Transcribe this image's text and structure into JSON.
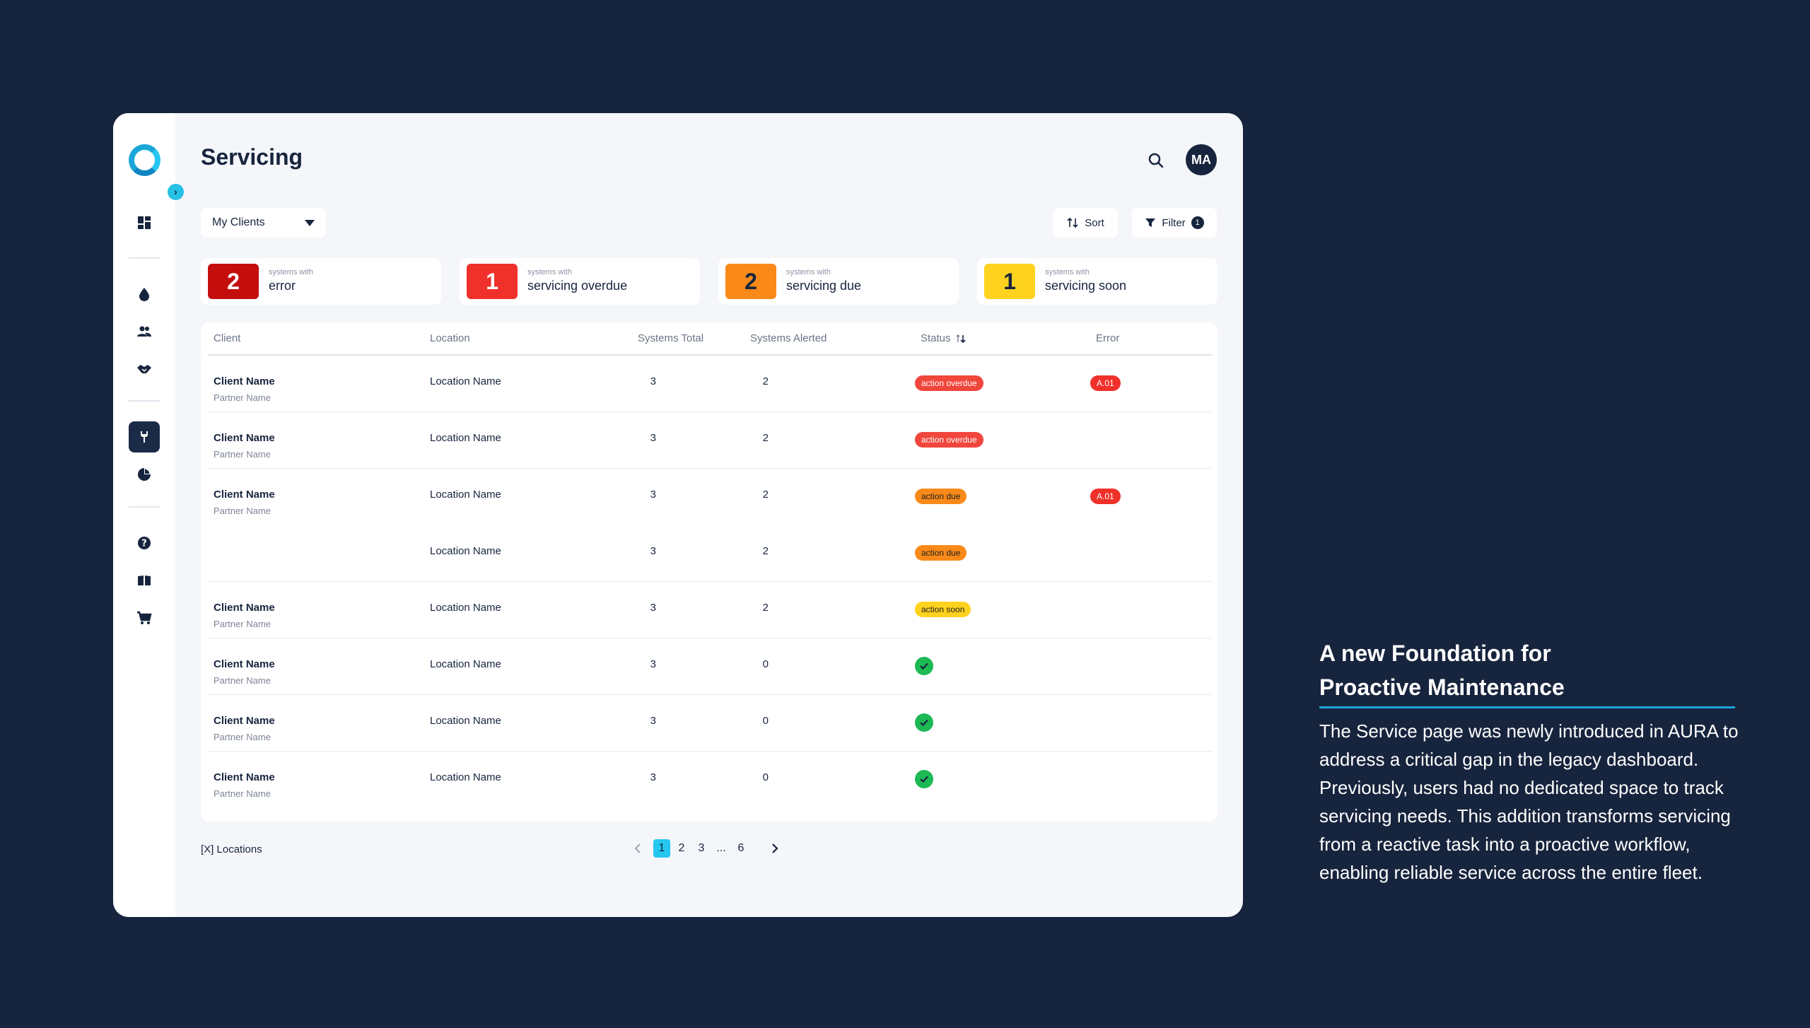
{
  "app": {
    "page_title": "Servicing",
    "avatar_initials": "MA",
    "client_filter": "My Clients",
    "sort_label": "Sort",
    "filter_label": "Filter",
    "filter_count": "1"
  },
  "sidebar": {
    "icons": [
      "dashboard-icon",
      "water-drop-icon",
      "users-icon",
      "handshake-icon",
      "wrench-icon",
      "pie-chart-icon",
      "help-icon",
      "book-icon",
      "cart-icon"
    ],
    "active": "wrench-icon"
  },
  "stats": [
    {
      "value": "2",
      "prefix": "systems with",
      "label": "error",
      "color": "#c40e0e",
      "text_color": "#ffffff"
    },
    {
      "value": "1",
      "prefix": "systems with",
      "label": "servicing overdue",
      "color": "#f0302a",
      "text_color": "#ffffff"
    },
    {
      "value": "2",
      "prefix": "systems with",
      "label": "servicing due",
      "color": "#f98a1a",
      "text_color": "#17243d"
    },
    {
      "value": "1",
      "prefix": "systems with",
      "label": "servicing soon",
      "color": "#ffd21f",
      "text_color": "#17243d"
    }
  ],
  "table": {
    "headers": {
      "client": "Client",
      "location": "Location",
      "systems_total": "Systems Total",
      "systems_alerted": "Systems Alerted",
      "status": "Status",
      "error": "Error"
    },
    "rows": [
      {
        "client": "Client Name",
        "partner": "Partner Name",
        "location": "Location Name",
        "total": "3",
        "alerted": "2",
        "status": "action overdue",
        "status_type": "red",
        "error": "A.01"
      },
      {
        "client": "Client Name",
        "partner": "Partner Name",
        "location": "Location Name",
        "total": "3",
        "alerted": "2",
        "status": "action overdue",
        "status_type": "red",
        "error": ""
      },
      {
        "client": "Client Name",
        "partner": "Partner Name",
        "location": "Location Name",
        "total": "3",
        "alerted": "2",
        "status": "action due",
        "status_type": "orange",
        "error": "A.01"
      },
      {
        "client": "",
        "partner": "",
        "location": "Location Name",
        "total": "3",
        "alerted": "2",
        "status": "action due",
        "status_type": "orange",
        "error": ""
      },
      {
        "client": "Client Name",
        "partner": "Partner Name",
        "location": "Location Name",
        "total": "3",
        "alerted": "2",
        "status": "action soon",
        "status_type": "yellow",
        "error": ""
      },
      {
        "client": "Client Name",
        "partner": "Partner Name",
        "location": "Location Name",
        "total": "3",
        "alerted": "0",
        "status": "",
        "status_type": "ok",
        "error": ""
      },
      {
        "client": "Client Name",
        "partner": "Partner Name",
        "location": "Location Name",
        "total": "3",
        "alerted": "0",
        "status": "",
        "status_type": "ok",
        "error": ""
      },
      {
        "client": "Client Name",
        "partner": "Partner Name",
        "location": "Location Name",
        "total": "3",
        "alerted": "0",
        "status": "",
        "status_type": "ok",
        "error": ""
      }
    ]
  },
  "pagination": {
    "locations_label": "[X] Locations",
    "pages": [
      "1",
      "2",
      "3",
      "...",
      "6"
    ],
    "current": "1"
  },
  "description": {
    "heading": "A new Foundation for Proactive Maintenance",
    "body": "The Service page was newly introduced in AURA to address a critical gap in the legacy dashboard. Previously, users had no dedicated space to track servicing needs. This addition transforms servicing from a reactive task into a proactive workflow, enabling reliable service across the entire fleet."
  }
}
